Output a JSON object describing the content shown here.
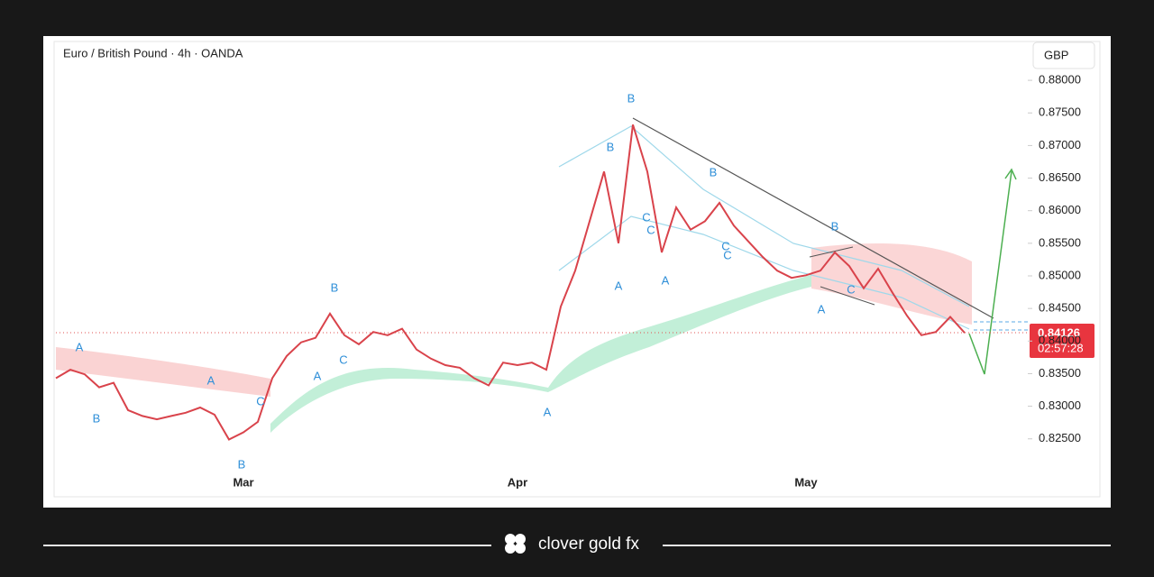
{
  "chart_data": {
    "type": "line",
    "title": "Euro / British Pound · 4h · OANDA",
    "currency": "GBP",
    "color": "#d9434b",
    "categories": [
      null,
      null,
      null,
      null,
      null,
      null,
      null,
      null,
      null,
      null,
      null,
      null,
      null,
      "Mar",
      null,
      null,
      null,
      null,
      null,
      null,
      null,
      null,
      null,
      null,
      null,
      null,
      null,
      null,
      null,
      null,
      null,
      null,
      "Apr",
      null,
      null,
      null,
      null,
      null,
      null,
      null,
      null,
      null,
      null,
      null,
      null,
      null,
      null,
      null,
      null,
      null,
      null,
      null,
      "May",
      null,
      null,
      null,
      null,
      null,
      null,
      null,
      null,
      null,
      null,
      null
    ],
    "values": [
      0.8343,
      0.8356,
      0.8349,
      0.8329,
      0.8336,
      0.8294,
      0.8285,
      0.828,
      0.8285,
      0.829,
      0.8298,
      0.8287,
      0.8249,
      0.826,
      0.8276,
      0.8343,
      0.8377,
      0.8398,
      0.8405,
      0.8442,
      0.8409,
      0.8395,
      0.8414,
      0.8409,
      0.8419,
      0.8387,
      0.8373,
      0.8363,
      0.8359,
      0.8343,
      0.8332,
      0.8367,
      0.8363,
      0.8367,
      0.8356,
      0.8453,
      0.8508,
      0.8584,
      0.866,
      0.855,
      0.8732,
      0.866,
      0.8536,
      0.8605,
      0.8571,
      0.8584,
      0.8612,
      0.8577,
      0.8553,
      0.8529,
      0.8508,
      0.8497,
      0.8501,
      0.8508,
      0.8536,
      0.8515,
      0.8481,
      0.8511,
      0.8474,
      0.8439,
      0.8409,
      0.8414,
      0.8437,
      0.84126
    ],
    "ylim": [
      0.8204,
      0.8861
    ],
    "yticks": [
      {
        "value": 0.825,
        "label": "0.82500"
      },
      {
        "value": 0.83,
        "label": "0.83000"
      },
      {
        "value": 0.835,
        "label": "0.83500"
      },
      {
        "value": 0.84,
        "label": "0.84000"
      },
      {
        "value": 0.845,
        "label": "0.84500"
      },
      {
        "value": 0.85,
        "label": "0.85000"
      },
      {
        "value": 0.855,
        "label": "0.85500"
      },
      {
        "value": 0.86,
        "label": "0.86000"
      },
      {
        "value": 0.865,
        "label": "0.86500"
      },
      {
        "value": 0.87,
        "label": "0.87000"
      },
      {
        "value": 0.875,
        "label": "0.87500"
      },
      {
        "value": 0.88,
        "label": "0.88000"
      }
    ],
    "last_price": 0.84126,
    "countdown": "02:57:28",
    "annotations": [
      "A",
      "B",
      "B",
      "A",
      "C",
      "B",
      "A",
      "C",
      "A",
      "B",
      "B",
      "C",
      "C",
      "A",
      "A",
      "B",
      "C",
      "C",
      "B",
      "A",
      "C"
    ]
  },
  "brand": "clover gold fx"
}
